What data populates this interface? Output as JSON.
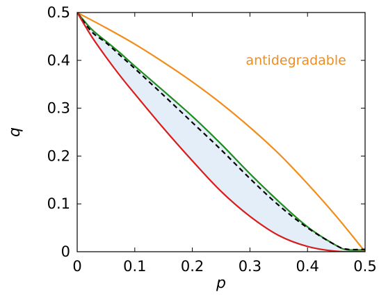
{
  "chart_data": {
    "type": "line",
    "title": "",
    "xlabel": "p",
    "ylabel": "q",
    "xlim": [
      0,
      0.5
    ],
    "ylim": [
      0,
      0.5
    ],
    "xticks": [
      "0",
      "0.1",
      "0.2",
      "0.3",
      "0.4",
      "0.5"
    ],
    "yticks": [
      "0",
      "0.1",
      "0.2",
      "0.3",
      "0.4",
      "0.5"
    ],
    "grid": false,
    "legend": "none",
    "annotations": [
      {
        "text": "antidegradable",
        "x": 0.38,
        "y": 0.4,
        "color": "#F28C1A"
      }
    ],
    "shaded_region": {
      "between": [
        "red",
        "green"
      ],
      "color": "#E3EEF9"
    },
    "series": [
      {
        "color": "#F28C1A",
        "style": "solid",
        "x": [
          0,
          0.05,
          0.1,
          0.15,
          0.2,
          0.25,
          0.3,
          0.35,
          0.4,
          0.45,
          0.5
        ],
        "y": [
          0.5,
          0.468,
          0.434,
          0.396,
          0.355,
          0.31,
          0.26,
          0.205,
          0.142,
          0.074,
          0
        ]
      },
      {
        "color": "#1E8C1E",
        "style": "solid",
        "x": [
          0,
          0.025,
          0.05,
          0.075,
          0.1,
          0.15,
          0.2,
          0.25,
          0.3,
          0.35,
          0.4,
          0.45,
          0.47,
          0.5
        ],
        "y": [
          0.5,
          0.465,
          0.44,
          0.415,
          0.388,
          0.336,
          0.283,
          0.225,
          0.163,
          0.105,
          0.052,
          0.013,
          0.004,
          0.004
        ]
      },
      {
        "color": "#000000",
        "style": "dashed",
        "x": [
          0,
          0.025,
          0.05,
          0.075,
          0.1,
          0.15,
          0.2,
          0.25,
          0.3,
          0.35,
          0.4,
          0.45,
          0.47,
          0.5
        ],
        "y": [
          0.5,
          0.46,
          0.437,
          0.41,
          0.383,
          0.327,
          0.27,
          0.213,
          0.153,
          0.097,
          0.05,
          0.013,
          0.005,
          0.005
        ]
      },
      {
        "color": "#D91C1C",
        "style": "solid",
        "x": [
          0,
          0.025,
          0.05,
          0.075,
          0.1,
          0.15,
          0.2,
          0.25,
          0.3,
          0.35,
          0.4,
          0.45,
          0.5
        ],
        "y": [
          0.5,
          0.45,
          0.407,
          0.367,
          0.33,
          0.258,
          0.19,
          0.126,
          0.074,
          0.034,
          0.011,
          0.001,
          0
        ]
      }
    ]
  }
}
